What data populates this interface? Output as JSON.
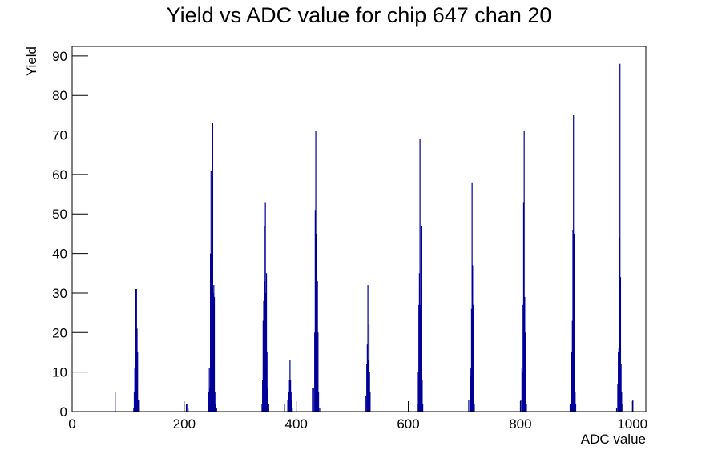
{
  "chart_data": {
    "type": "histogram",
    "title": "Yield vs ADC value for chip 647 chan 20",
    "x_label": "ADC value",
    "y_label": "Yield",
    "color": "#000099",
    "x": [
      76,
      109,
      110,
      111,
      112,
      113,
      114,
      115,
      116,
      117,
      119,
      203,
      205,
      206,
      242,
      243,
      244,
      245,
      246,
      247,
      248,
      250,
      251,
      252,
      253,
      254,
      255,
      257,
      338,
      339,
      340,
      341,
      342,
      343,
      344,
      345,
      346,
      347,
      348,
      350,
      378,
      384,
      386,
      387,
      388,
      389,
      390,
      391,
      392,
      428,
      430,
      432,
      433,
      434,
      435,
      436,
      437,
      438,
      439,
      441,
      523,
      525,
      526,
      527,
      528,
      529,
      530,
      531,
      615,
      617,
      618,
      619,
      620,
      621,
      622,
      623,
      624,
      625,
      707,
      710,
      711,
      712,
      713,
      714,
      715,
      716,
      717,
      800,
      802,
      803,
      804,
      805,
      806,
      807,
      808,
      809,
      810,
      888,
      890,
      891,
      892,
      893,
      894,
      895,
      896,
      897,
      898,
      971,
      973,
      974,
      975,
      976,
      977,
      978,
      979,
      980,
      982,
      1000
    ],
    "values": [
      5,
      1,
      5,
      11,
      5,
      31,
      31,
      21,
      15,
      3,
      3,
      2,
      2,
      1,
      2,
      5,
      11,
      6,
      40,
      61,
      40,
      73,
      30,
      32,
      29,
      5,
      2,
      1,
      2,
      8,
      23,
      28,
      47,
      33,
      53,
      30,
      35,
      15,
      6,
      2,
      2,
      3,
      5,
      8,
      13,
      8,
      5,
      3,
      1,
      6,
      6,
      20,
      51,
      71,
      45,
      11,
      33,
      20,
      5,
      1,
      4,
      12,
      17,
      32,
      13,
      22,
      10,
      5,
      2,
      10,
      27,
      35,
      69,
      27,
      47,
      30,
      8,
      2,
      3,
      9,
      11,
      26,
      58,
      37,
      27,
      6,
      2,
      3,
      11,
      10,
      27,
      53,
      71,
      29,
      20,
      5,
      2,
      2,
      7,
      15,
      23,
      46,
      75,
      45,
      20,
      5,
      2,
      1,
      7,
      15,
      16,
      44,
      88,
      34,
      12,
      5,
      2,
      3
    ],
    "xlim": [
      0,
      1024
    ],
    "ylim": [
      0,
      92.4
    ],
    "xticks": [
      0,
      200,
      400,
      600,
      800,
      1000
    ],
    "yticks": [
      0,
      10,
      20,
      30,
      40,
      50,
      60,
      70,
      80,
      90
    ]
  }
}
